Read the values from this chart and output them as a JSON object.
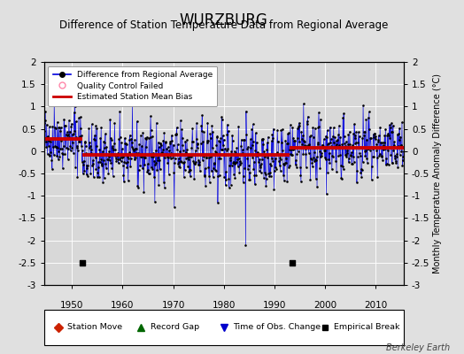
{
  "title": "WURZBURG",
  "subtitle": "Difference of Station Temperature Data from Regional Average",
  "ylabel": "Monthly Temperature Anomaly Difference (°C)",
  "xlabel_years": [
    1950,
    1960,
    1970,
    1980,
    1990,
    2000,
    2010
  ],
  "ylim": [
    -3,
    2
  ],
  "yticks": [
    -3,
    -2.5,
    -2,
    -1.5,
    -1,
    -0.5,
    0,
    0.5,
    1,
    1.5,
    2
  ],
  "xlim": [
    1944.5,
    2015.5
  ],
  "bias_segments": [
    {
      "x": [
        1944.5,
        1952.0
      ],
      "y": [
        0.28,
        0.28
      ]
    },
    {
      "x": [
        1952.0,
        1993.0
      ],
      "y": [
        -0.08,
        -0.08
      ]
    },
    {
      "x": [
        1993.0,
        2015.5
      ],
      "y": [
        0.08,
        0.08
      ]
    }
  ],
  "empirical_breaks": [
    1952.0,
    1993.5
  ],
  "background_color": "#e0e0e0",
  "plot_bg_color": "#d8d8d8",
  "line_color": "#0000dd",
  "bias_color": "#cc0000",
  "grid_color": "#ffffff",
  "title_fontsize": 12,
  "subtitle_fontsize": 8.5,
  "watermark": "Berkeley Earth",
  "seed": 42,
  "n_points": 852,
  "start_year": 1944.5,
  "end_year": 2015.5
}
